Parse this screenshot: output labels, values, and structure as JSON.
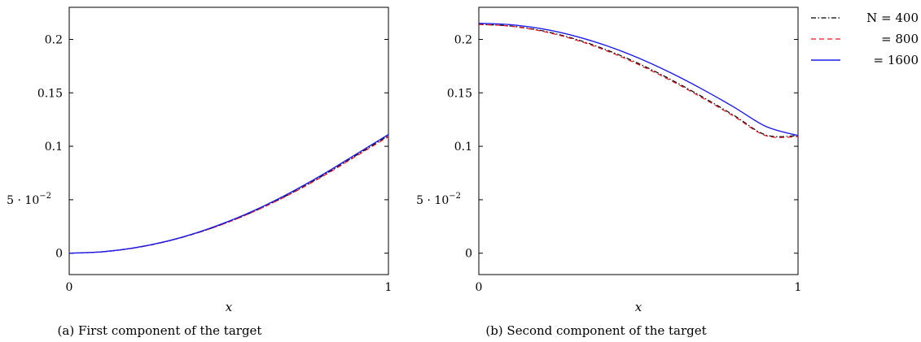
{
  "colors": {
    "N400": "#000000",
    "N800": "#e8141b",
    "N1600": "#1a1aee"
  },
  "chart_data": [
    {
      "type": "line",
      "title": "",
      "caption": "(a) First component of the target",
      "xlabel": "x",
      "ylabel": "",
      "xlim": [
        0,
        1
      ],
      "ylim": [
        -0.02,
        0.23
      ],
      "x_ticks": [
        0,
        1
      ],
      "x_tick_labels": [
        "0",
        "1"
      ],
      "y_ticks": [
        0,
        0.05,
        0.1,
        0.15,
        0.2
      ],
      "y_tick_labels": [
        "0",
        "5 · 10",
        "0.1",
        "0.15",
        "0.2"
      ],
      "grid": false,
      "legend": "none",
      "x": [
        0,
        0.1,
        0.2,
        0.3,
        0.4,
        0.5,
        0.6,
        0.7,
        0.8,
        0.9,
        1.0
      ],
      "series": [
        {
          "key": "N400",
          "style": "dashdot",
          "values": [
            0,
            0.0012,
            0.0047,
            0.0106,
            0.0189,
            0.0293,
            0.042,
            0.0568,
            0.0735,
            0.0917,
            0.11
          ]
        },
        {
          "key": "N800",
          "style": "dashed",
          "values": [
            0,
            0.0012,
            0.0047,
            0.0106,
            0.0188,
            0.0292,
            0.0418,
            0.0564,
            0.0729,
            0.091,
            0.109
          ]
        },
        {
          "key": "N1600",
          "style": "solid",
          "values": [
            0,
            0.0012,
            0.0048,
            0.0108,
            0.0192,
            0.0299,
            0.0428,
            0.0578,
            0.0746,
            0.0928,
            0.111
          ]
        }
      ]
    },
    {
      "type": "line",
      "title": "",
      "caption": "(b) Second component of the target",
      "xlabel": "x",
      "ylabel": "",
      "xlim": [
        0,
        1
      ],
      "ylim": [
        -0.02,
        0.23
      ],
      "x_ticks": [
        0,
        1
      ],
      "x_tick_labels": [
        "0",
        "1"
      ],
      "y_ticks": [
        0,
        0.05,
        0.1,
        0.15,
        0.2
      ],
      "y_tick_labels": [
        "0",
        "5 · 10",
        "0.1",
        "0.15",
        "0.2"
      ],
      "grid": false,
      "legend": "outside-right",
      "legend_entries": [
        {
          "key": "N400",
          "label": "N = 400",
          "style": "dashdot"
        },
        {
          "key": "N800",
          "label": "= 800",
          "style": "dashed"
        },
        {
          "key": "N1600",
          "label": "= 1600",
          "style": "solid"
        }
      ],
      "x": [
        0,
        0.1,
        0.2,
        0.3,
        0.4,
        0.5,
        0.6,
        0.7,
        0.8,
        0.9,
        1.0
      ],
      "series": [
        {
          "key": "N400",
          "style": "dashdot",
          "values": [
            0.214,
            0.2125,
            0.208,
            0.2005,
            0.1902,
            0.1775,
            0.1627,
            0.1463,
            0.1288,
            0.1105,
            0.11
          ]
        },
        {
          "key": "N800",
          "style": "dashed",
          "values": [
            0.214,
            0.2123,
            0.2075,
            0.1998,
            0.1893,
            0.1765,
            0.1617,
            0.1453,
            0.1279,
            0.1098,
            0.109
          ]
        },
        {
          "key": "N1600",
          "style": "solid",
          "values": [
            0.215,
            0.2137,
            0.2098,
            0.2032,
            0.1941,
            0.1826,
            0.1689,
            0.1534,
            0.1365,
            0.1185,
            0.11
          ]
        }
      ]
    }
  ],
  "y_tick_exponent": "−2"
}
